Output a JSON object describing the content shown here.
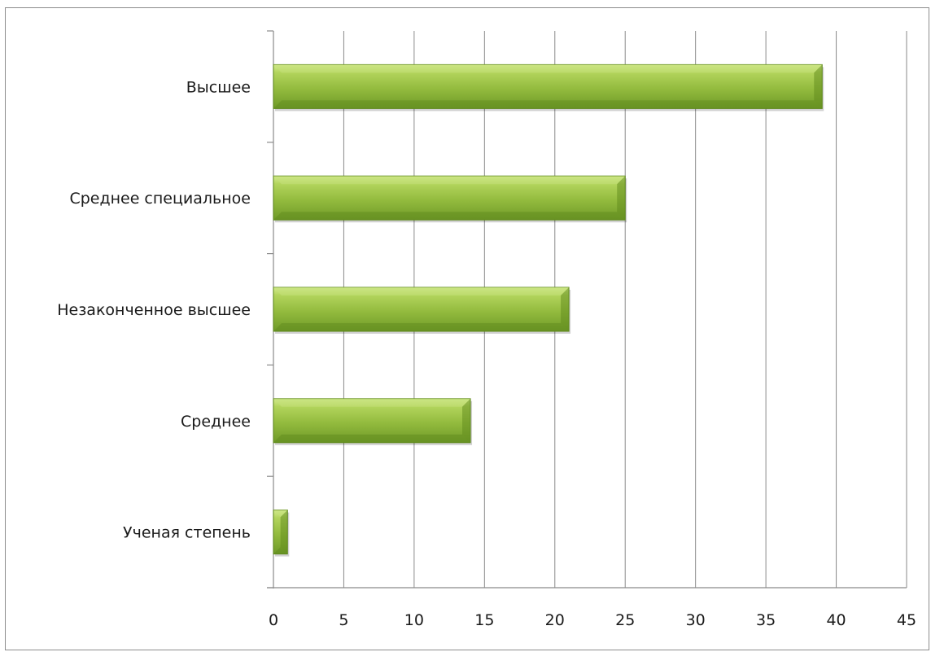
{
  "chart_data": {
    "type": "bar",
    "orientation": "horizontal",
    "title": "",
    "xlabel": "",
    "ylabel": "",
    "categories": [
      "Высшее",
      "Среднее специальное",
      "Незаконченное высшее",
      "Среднее",
      "Ученая степень"
    ],
    "values": [
      39,
      25,
      21,
      14,
      1
    ],
    "xlim": [
      0,
      45
    ],
    "x_ticks": [
      "0",
      "5",
      "10",
      "15",
      "20",
      "25",
      "30",
      "35",
      "40",
      "45"
    ],
    "grid": "vertical",
    "legend": "none",
    "bar_color": "#8fb93a",
    "bar_highlight": "#c5e07a",
    "bar_shadow": "#5f8a1c"
  }
}
